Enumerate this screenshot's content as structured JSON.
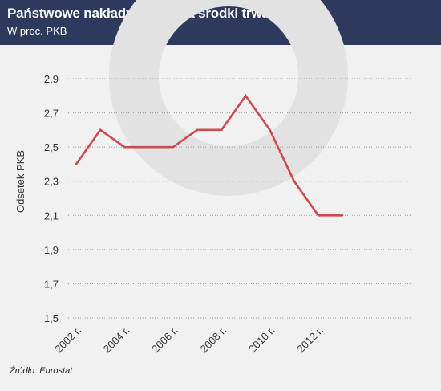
{
  "header": {
    "title": "Państwowe nakłady brutto na środki trwałe",
    "subtitle": "W proc. PKB"
  },
  "source": "Źródło: Eurostat",
  "colors": {
    "header_bg": "#2d3a5e",
    "line": "#cf4a4a",
    "background": "#f1f1f1",
    "watermark": "#e2e2e2"
  },
  "chart_data": {
    "type": "line",
    "ylabel": "Odsetek PKB",
    "xlabel": "",
    "x": [
      2002,
      2003,
      2004,
      2005,
      2006,
      2007,
      2008,
      2009,
      2010,
      2011,
      2012,
      2013
    ],
    "series": [
      {
        "values": [
          2.4,
          2.6,
          2.5,
          2.5,
          2.5,
          2.6,
          2.6,
          2.8,
          2.6,
          2.3,
          2.1,
          2.1
        ]
      }
    ],
    "ylim": [
      1.5,
      2.9
    ],
    "yticks": [
      "1,5",
      "1,7",
      "1,9",
      "2,1",
      "2,3",
      "2,5",
      "2,7",
      "2,9"
    ],
    "xticks": [
      {
        "x": 2002,
        "label": "2002 r."
      },
      {
        "x": 2004,
        "label": "2004 r."
      },
      {
        "x": 2006,
        "label": "2006 r."
      },
      {
        "x": 2008,
        "label": "2008 r."
      },
      {
        "x": 2010,
        "label": "2010 r."
      },
      {
        "x": 2012,
        "label": "2012 r."
      }
    ],
    "grid": "horizontal-dotted"
  }
}
